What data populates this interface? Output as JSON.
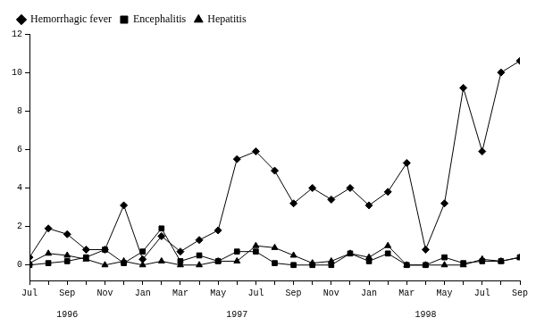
{
  "chart_data": {
    "type": "line",
    "categories": [
      "Jul",
      null,
      "Sep",
      null,
      "Nov",
      null,
      "Jan",
      null,
      "Mar",
      null,
      "May",
      null,
      "Jul",
      null,
      "Sep",
      null,
      "Nov",
      null,
      "Jan",
      null,
      "Mar",
      null,
      "May",
      null,
      "Jul",
      null,
      "Sep"
    ],
    "x_group_labels": [
      null,
      null,
      "1996",
      null,
      null,
      null,
      null,
      null,
      null,
      null,
      null,
      "1997",
      null,
      null,
      null,
      null,
      null,
      null,
      null,
      null,
      null,
      "1998",
      null,
      null,
      null,
      null,
      null
    ],
    "series": [
      {
        "name": "Hemorrhagic fever",
        "color": "#000000",
        "marker": "diamond",
        "line_style": "solid",
        "values": [
          0.4,
          1.9,
          1.6,
          0.8,
          0.8,
          3.1,
          0.3,
          1.5,
          0.7,
          1.3,
          1.8,
          5.5,
          5.9,
          4.9,
          3.2,
          4.0,
          3.4,
          4.0,
          3.1,
          3.8,
          5.3,
          0.8,
          3.2,
          9.2,
          5.9,
          10.0,
          10.6
        ]
      },
      {
        "name": "Encephalitis",
        "color": "#000000",
        "marker": "square",
        "line_style": "solid",
        "values": [
          0.0,
          0.1,
          0.2,
          0.4,
          0.8,
          0.1,
          0.7,
          1.9,
          0.2,
          0.5,
          0.2,
          0.7,
          0.7,
          0.1,
          0.0,
          0.0,
          0.0,
          0.6,
          0.2,
          0.6,
          0.0,
          0.0,
          0.4,
          0.1,
          0.2,
          0.2,
          0.4
        ]
      },
      {
        "name": "Hepatitis",
        "color": "#000000",
        "marker": "triangle",
        "line_style": "solid",
        "values": [
          0.1,
          0.6,
          0.5,
          0.3,
          0.0,
          0.2,
          0.0,
          0.2,
          0.0,
          0.0,
          0.2,
          0.2,
          1.0,
          0.9,
          0.5,
          0.1,
          0.2,
          0.6,
          0.4,
          1.0,
          0.0,
          0.0,
          0.0,
          0.0,
          0.3,
          0.2,
          0.4
        ]
      }
    ],
    "ylim": [
      -0.8,
      12
    ],
    "yticks": [
      0,
      2,
      4,
      6,
      8,
      10,
      12
    ],
    "grid": false,
    "legend": "top-left"
  }
}
